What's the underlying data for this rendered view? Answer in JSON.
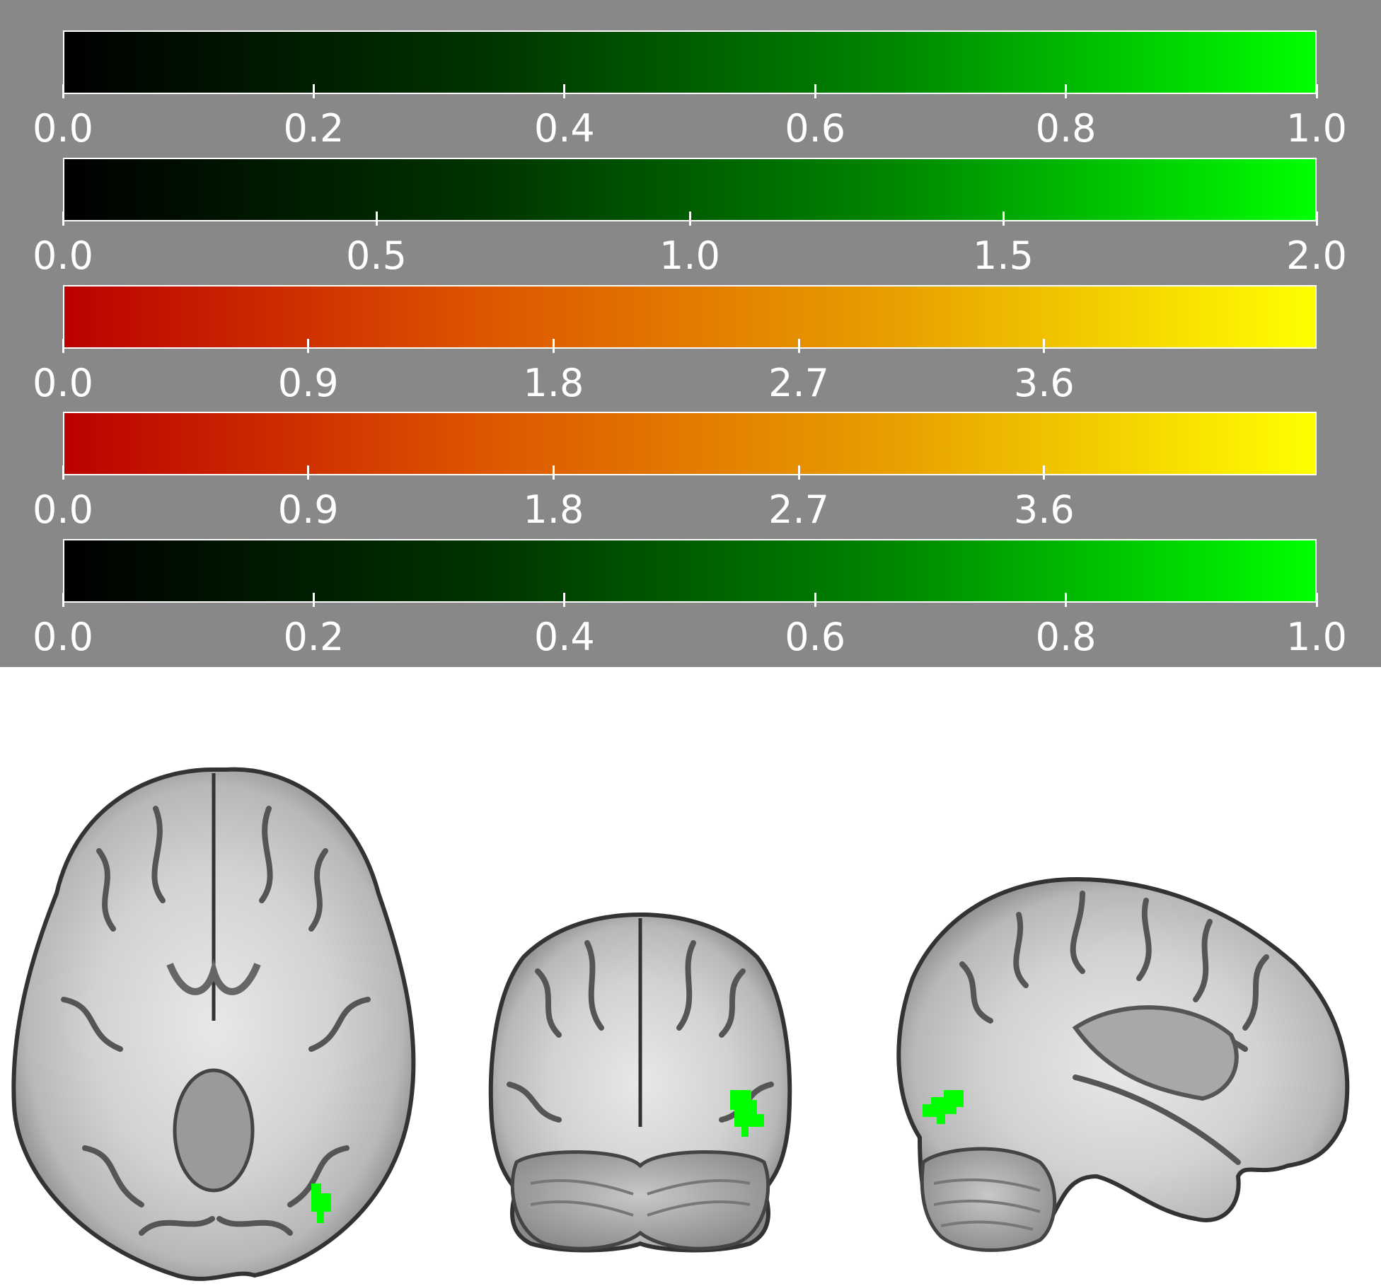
{
  "colorbars": [
    {
      "name": "colorbar-1",
      "colormap": [
        "#000000",
        "#003300",
        "#008800",
        "#00ff00"
      ],
      "ticks": [
        "0.0",
        "0.2",
        "0.4",
        "0.6",
        "0.8",
        "1.0"
      ],
      "range": [
        0.0,
        1.0
      ]
    },
    {
      "name": "colorbar-2",
      "colormap": [
        "#000000",
        "#003300",
        "#008800",
        "#00ff00"
      ],
      "ticks": [
        "0.0",
        "0.5",
        "1.0",
        "1.5",
        "2.0"
      ],
      "range": [
        0.0,
        2.0
      ]
    },
    {
      "name": "colorbar-3",
      "colormap": [
        "#bb0000",
        "#dd5500",
        "#e8a000",
        "#ffff00"
      ],
      "ticks": [
        "0.0",
        "0.9",
        "1.8",
        "2.7",
        "3.6"
      ],
      "range": [
        0.0,
        4.6
      ]
    },
    {
      "name": "colorbar-4",
      "colormap": [
        "#bb0000",
        "#dd5500",
        "#e8a000",
        "#ffff00"
      ],
      "ticks": [
        "0.0",
        "0.9",
        "1.8",
        "2.7",
        "3.6"
      ],
      "range": [
        0.0,
        4.6
      ]
    },
    {
      "name": "colorbar-5",
      "colormap": [
        "#000000",
        "#003300",
        "#008800",
        "#00ff00"
      ],
      "ticks": [
        "0.0",
        "0.2",
        "0.4",
        "0.6",
        "0.8",
        "1.0"
      ],
      "range": [
        0.0,
        1.0
      ]
    }
  ],
  "overlay_color": "#00ff00",
  "views": [
    "axial",
    "coronal",
    "sagittal"
  ]
}
